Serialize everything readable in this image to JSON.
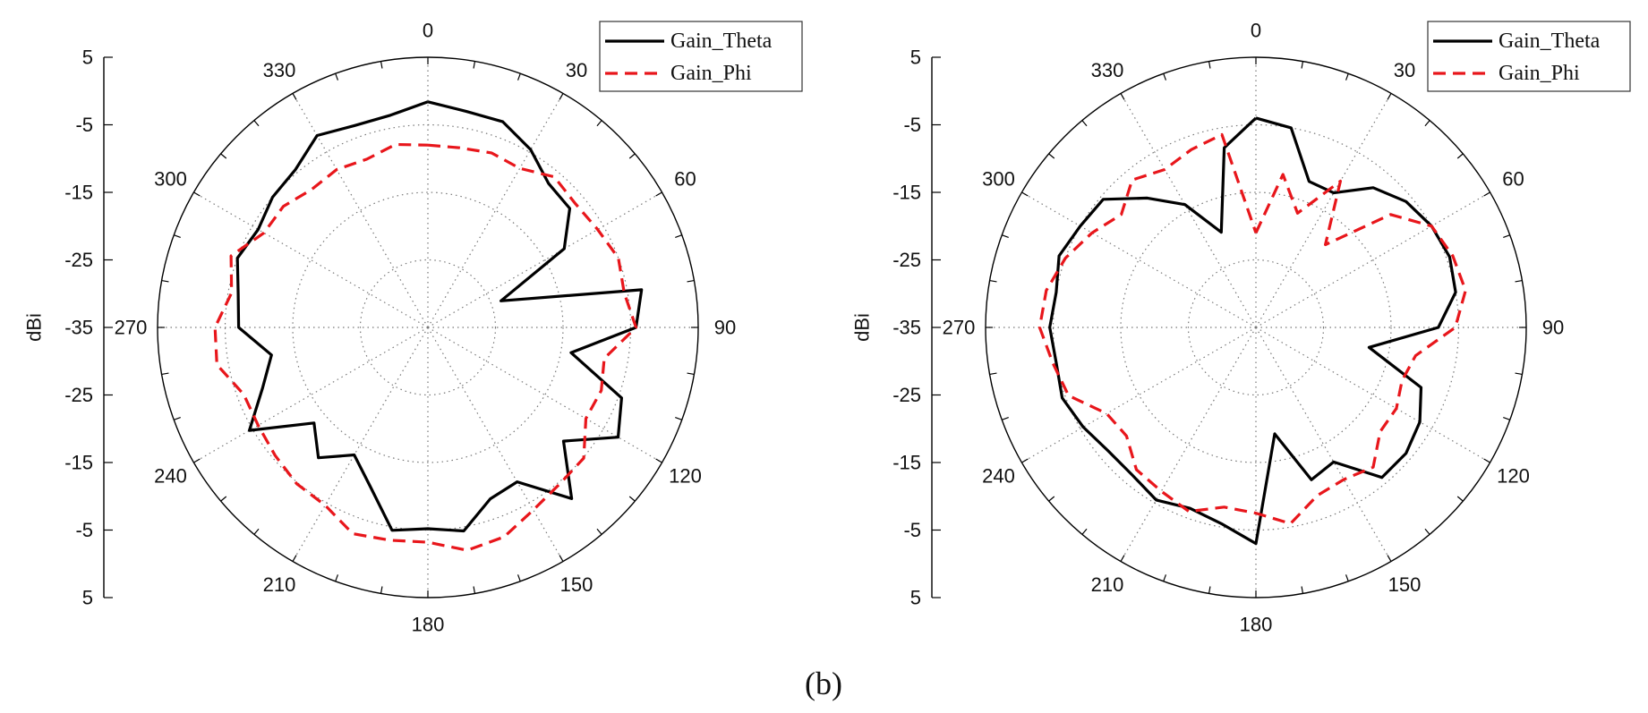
{
  "figure_label": "(b)",
  "chart_data": [
    {
      "type": "polar-line",
      "radial_label": "dBi",
      "radial_ticks": [
        "5",
        "-5",
        "-15",
        "-25",
        "-35"
      ],
      "radial_range": [
        -35,
        5
      ],
      "angle_ticks": [
        0,
        30,
        60,
        90,
        120,
        150,
        180,
        210,
        240,
        270,
        300,
        330
      ],
      "legend": [
        "Gain_Theta",
        "Gain_Phi"
      ],
      "series": [
        {
          "name": "Gain_Theta",
          "color": "#000000",
          "style": "solid",
          "angles": [
            0,
            10,
            20,
            30,
            40,
            50,
            60,
            70,
            80,
            90,
            100,
            110,
            120,
            130,
            140,
            150,
            160,
            170,
            180,
            190,
            200,
            210,
            220,
            230,
            240,
            250,
            260,
            270,
            280,
            290,
            300,
            310,
            320,
            330,
            340,
            350
          ],
          "values": [
            -1.6,
            -2.5,
            -2.6,
            -4.6,
            -7.2,
            -7.6,
            -11.7,
            -23.5,
            -2.9,
            -4.2,
            -13.5,
            -4.5,
            -2.5,
            -8.8,
            -1.9,
            -8.6,
            -8.0,
            -4.4,
            -5.2,
            -4.5,
            -10.0,
            -13.2,
            -9.8,
            -13.0,
            -4.5,
            -9.0,
            -11.5,
            -7.0,
            -6.5,
            -5.0,
            -6.0,
            -5.0,
            -4.5,
            -2.2,
            -3.2,
            -3.1
          ]
        },
        {
          "name": "Gain_Phi",
          "color": "#e8161b",
          "style": "dashed",
          "angles": [
            0,
            10,
            20,
            30,
            40,
            50,
            60,
            70,
            80,
            90,
            100,
            110,
            120,
            130,
            140,
            150,
            160,
            170,
            180,
            190,
            200,
            210,
            220,
            230,
            240,
            250,
            260,
            270,
            280,
            290,
            300,
            310,
            320,
            330,
            340,
            350
          ],
          "values": [
            -8.0,
            -8.0,
            -7.5,
            -7.8,
            -5.9,
            -6.5,
            -6.0,
            -5.0,
            -5.5,
            -4.2,
            -8.5,
            -7.7,
            -8.0,
            -4.9,
            -4.7,
            -3.8,
            -2.0,
            -1.5,
            -3.2,
            -3.0,
            -2.5,
            -4.6,
            -4.8,
            -5.5,
            -6.0,
            -6.0,
            -3.3,
            -3.5,
            -5.5,
            -4.0,
            -7.0,
            -7.1,
            -8.3,
            -8.0,
            -8.5,
            -7.5
          ]
        }
      ]
    },
    {
      "type": "polar-line",
      "radial_label": "dBi",
      "radial_ticks": [
        "5",
        "-5",
        "-15",
        "-25",
        "-35"
      ],
      "radial_range": [
        -35,
        5
      ],
      "angle_ticks": [
        0,
        30,
        60,
        90,
        120,
        150,
        180,
        210,
        240,
        270,
        300,
        330
      ],
      "legend": [
        "Gain_Theta",
        "Gain_Phi"
      ],
      "series": [
        {
          "name": "Gain_Theta",
          "color": "#000000",
          "style": "solid",
          "angles": [
            0,
            10,
            20,
            30,
            40,
            50,
            60,
            70,
            80,
            90,
            100,
            110,
            120,
            130,
            140,
            150,
            160,
            170,
            180,
            190,
            200,
            210,
            220,
            230,
            240,
            250,
            260,
            270,
            280,
            290,
            300,
            310,
            320,
            330,
            340,
            350
          ],
          "values": [
            -4.0,
            -5.0,
            -12.0,
            -12.0,
            -8.0,
            -6.0,
            -5.0,
            -4.5,
            -5.0,
            -8.0,
            -18.0,
            -9.0,
            -7.0,
            -6.0,
            -6.0,
            -12.0,
            -11.0,
            -19.0,
            -3.0,
            -5.5,
            -6.5,
            -5.5,
            -6.5,
            -6.5,
            -5.5,
            -4.5,
            -5.0,
            -4.5,
            -5.0,
            -4.0,
            -5.0,
            -5.5,
            -10.0,
            -14.0,
            -20.0,
            -8.0
          ]
        },
        {
          "name": "Gain_Phi",
          "color": "#e8161b",
          "style": "dashed",
          "angles": [
            0,
            10,
            20,
            30,
            40,
            50,
            60,
            70,
            80,
            90,
            100,
            110,
            120,
            130,
            140,
            150,
            160,
            170,
            180,
            190,
            200,
            210,
            220,
            230,
            240,
            250,
            260,
            270,
            280,
            290,
            300,
            310,
            320,
            330,
            340,
            350
          ],
          "values": [
            -21.0,
            -12.0,
            -17.0,
            -10.0,
            -19.0,
            -9.0,
            -5.0,
            -4.0,
            -3.5,
            -5.5,
            -11.0,
            -12.0,
            -11.0,
            -11.0,
            -8.0,
            -9.0,
            -8.5,
            -5.5,
            -7.5,
            -8.0,
            -6.0,
            -7.0,
            -7.5,
            -10.0,
            -9.5,
            -5.5,
            -4.5,
            -3.0,
            -3.5,
            -5.0,
            -7.0,
            -9.0,
            -6.5,
            -8.0,
            -7.0,
            -6.0
          ]
        }
      ]
    }
  ]
}
